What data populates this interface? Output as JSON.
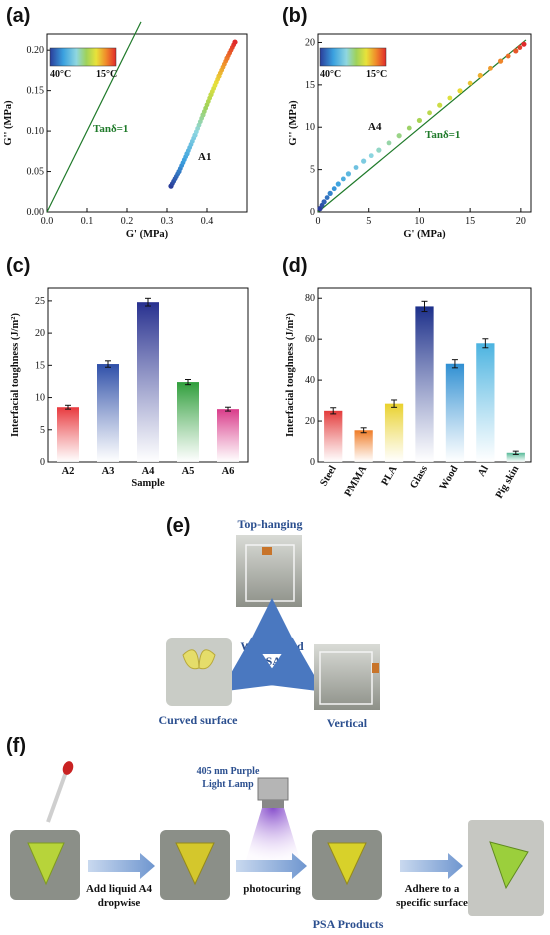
{
  "panels": {
    "a": "(a)",
    "b": "(b)",
    "c": "(c)",
    "d": "(d)",
    "e": "(e)",
    "f": "(f)"
  },
  "colorbar": {
    "left": "40°C",
    "right": "15°C"
  },
  "chart_data": [
    {
      "type": "scatter",
      "panel": "a",
      "xlabel": "G' (MPa)",
      "ylabel": "G'' (MPa)",
      "xlim": [
        0,
        0.5
      ],
      "ylim": [
        0,
        0.22
      ],
      "xticks": [
        "0.0",
        "0.1",
        "0.2",
        "0.3",
        "0.4"
      ],
      "yticks": [
        "0.00",
        "0.05",
        "0.10",
        "0.15",
        "0.20"
      ],
      "line_label": "Tanδ=1",
      "series_label": "A1",
      "line": {
        "x": [
          0,
          0.235
        ],
        "y": [
          0,
          0.235
        ]
      },
      "series": {
        "x": [
          0.31,
          0.33,
          0.35,
          0.37,
          0.39,
          0.41,
          0.43,
          0.45,
          0.47
        ],
        "y": [
          0.032,
          0.05,
          0.072,
          0.095,
          0.12,
          0.145,
          0.168,
          0.19,
          0.21
        ]
      }
    },
    {
      "type": "scatter",
      "panel": "b",
      "xlabel": "G' (MPa)",
      "ylabel": "G'' (MPa)",
      "xlim": [
        0,
        21
      ],
      "ylim": [
        0,
        21
      ],
      "xticks": [
        "0",
        "5",
        "10",
        "15",
        "20"
      ],
      "yticks": [
        "0",
        "5",
        "10",
        "15",
        "20"
      ],
      "line_label": "Tanδ=1",
      "series_label": "A4",
      "line": {
        "x": [
          0,
          20.5
        ],
        "y": [
          0,
          20.3
        ]
      },
      "series": {
        "x": [
          0.2,
          0.6,
          1.2,
          2,
          3,
          4.5,
          6,
          8,
          10,
          12,
          14,
          16,
          18,
          19.5,
          20.3
        ],
        "y": [
          0.4,
          1.2,
          2.2,
          3.3,
          4.5,
          6.0,
          7.3,
          9.0,
          10.8,
          12.6,
          14.3,
          16.1,
          17.8,
          19.0,
          19.8
        ]
      }
    },
    {
      "type": "bar",
      "panel": "c",
      "xlabel": "Sample",
      "ylabel": "Interfacial toughness (J/m²)",
      "ylim": [
        0,
        27
      ],
      "yticks": [
        "0",
        "5",
        "10",
        "15",
        "20",
        "25"
      ],
      "categories": [
        "A2",
        "A3",
        "A4",
        "A5",
        "A6"
      ],
      "values": [
        8.5,
        15.2,
        24.8,
        12.4,
        8.2
      ],
      "errors": [
        0.3,
        0.5,
        0.6,
        0.4,
        0.3
      ],
      "colors": [
        "#e8383d",
        "#2e4fa8",
        "#27308f",
        "#2f9e3b",
        "#d93b8a"
      ]
    },
    {
      "type": "bar",
      "panel": "d",
      "ylabel": "Interfacial toughness (J/m²)",
      "ylim": [
        0,
        85
      ],
      "yticks": [
        "0",
        "20",
        "40",
        "60",
        "80"
      ],
      "categories": [
        "Steel",
        "PMMA",
        "PLA",
        "Glass",
        "Wood",
        "Al",
        "Pig skin"
      ],
      "values": [
        25,
        15.5,
        28.5,
        76,
        48,
        58,
        4.5
      ],
      "errors": [
        1.5,
        1.2,
        1.8,
        2.5,
        2.0,
        2.2,
        0.8
      ],
      "colors": [
        "#e33a3a",
        "#ef7a24",
        "#e9d12c",
        "#1c2f8a",
        "#2f8fd2",
        "#4bb3e0",
        "#55b997"
      ]
    }
  ],
  "panel_e": {
    "top": "Top-hanging",
    "center": "WCO-based\nPSAs",
    "center1": "WCO-based",
    "center2": "PSAs",
    "left": "Curved surface",
    "right": "Vertical"
  },
  "panel_f": {
    "lamp1": "405 nm Purple",
    "lamp2": "Light Lamp",
    "step1a": "Add liquid A4",
    "step1b": "dropwise",
    "step2": "photocuring",
    "step3a": "Adhere to a",
    "step3b": "specific surface",
    "product": "PSA Products"
  }
}
